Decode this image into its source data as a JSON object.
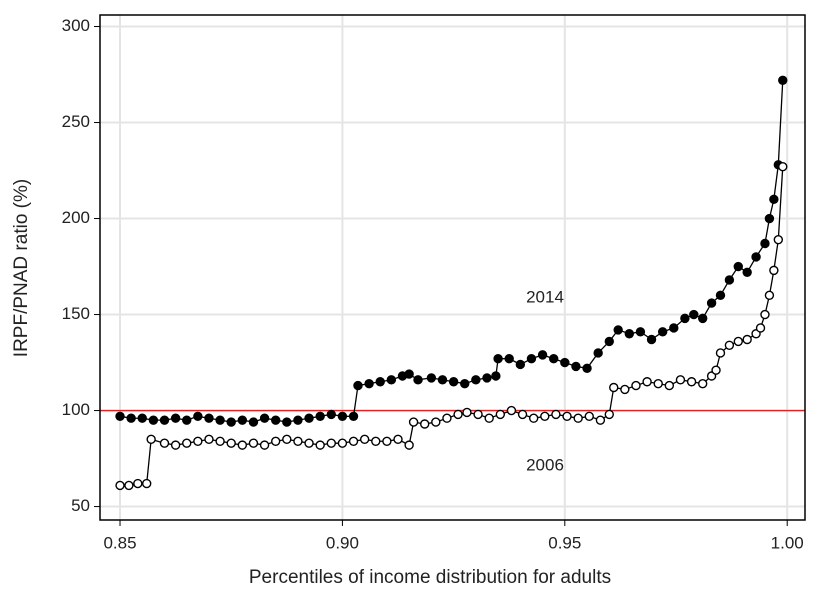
{
  "chart_data": {
    "type": "line",
    "xlabel": "Percentiles of income distribution for adults",
    "ylabel": "IRPF/PNAD ratio (%)",
    "xlim": [
      0.8455,
      1.004
    ],
    "ylim": [
      43,
      306
    ],
    "xticks": [
      0.85,
      {
        "value": 0.9,
        "label": "0.90"
      },
      0.95,
      {
        "value": 1,
        "label": "1.00"
      }
    ],
    "yticks": [
      50,
      100,
      150,
      200,
      250,
      300
    ],
    "grid": true,
    "hline": {
      "value": 100,
      "color": "#e02020"
    },
    "series": [
      {
        "name": "2014",
        "color": "#000000",
        "filled": true,
        "x": [
          0.85,
          0.8525,
          0.855,
          0.8575,
          0.86,
          0.8625,
          0.865,
          0.8675,
          0.87,
          0.8725,
          0.875,
          0.8775,
          0.88,
          0.8825,
          0.885,
          0.8875,
          0.89,
          0.8925,
          0.895,
          0.8975,
          0.9,
          0.9025,
          0.9035,
          0.906,
          0.9085,
          0.911,
          0.9135,
          0.915,
          0.917,
          0.92,
          0.9225,
          0.925,
          0.9275,
          0.93,
          0.9325,
          0.9345,
          0.935,
          0.9375,
          0.94,
          0.9425,
          0.945,
          0.9475,
          0.95,
          0.9525,
          0.955,
          0.9575,
          0.96,
          0.962,
          0.9645,
          0.967,
          0.9695,
          0.972,
          0.9745,
          0.977,
          0.979,
          0.981,
          0.983,
          0.985,
          0.987,
          0.989,
          0.991,
          0.993,
          0.995,
          0.996,
          0.997,
          0.998,
          0.999
        ],
        "values": [
          97,
          96,
          96,
          95,
          95,
          96,
          95,
          97,
          96,
          95,
          94,
          95,
          94,
          96,
          95,
          94,
          95,
          96,
          97,
          98,
          97,
          97,
          113,
          114,
          115,
          116,
          118,
          119,
          116,
          117,
          116,
          115,
          114,
          116,
          117,
          118,
          127,
          127,
          124,
          127,
          129,
          127,
          125,
          123,
          122,
          130,
          136,
          142,
          140,
          141,
          137,
          141,
          143,
          148,
          150,
          148,
          156,
          160,
          168,
          175,
          172,
          180,
          187,
          200,
          210,
          228,
          272
        ]
      },
      {
        "name": "2006",
        "color": "#000000",
        "filled": false,
        "x": [
          0.85,
          0.852,
          0.854,
          0.856,
          0.857,
          0.86,
          0.8625,
          0.865,
          0.8675,
          0.87,
          0.8725,
          0.875,
          0.8775,
          0.88,
          0.8825,
          0.885,
          0.8875,
          0.89,
          0.8925,
          0.895,
          0.8975,
          0.9,
          0.9025,
          0.905,
          0.9075,
          0.91,
          0.9125,
          0.915,
          0.916,
          0.9185,
          0.921,
          0.9235,
          0.926,
          0.928,
          0.9305,
          0.933,
          0.9355,
          0.938,
          0.9405,
          0.943,
          0.9455,
          0.948,
          0.9505,
          0.953,
          0.9555,
          0.958,
          0.96,
          0.961,
          0.9635,
          0.966,
          0.9685,
          0.971,
          0.9735,
          0.976,
          0.9785,
          0.981,
          0.983,
          0.984,
          0.985,
          0.987,
          0.989,
          0.991,
          0.993,
          0.994,
          0.995,
          0.996,
          0.997,
          0.998,
          0.999
        ],
        "values": [
          61,
          61,
          62,
          62,
          85,
          83,
          82,
          83,
          84,
          85,
          84,
          83,
          82,
          83,
          82,
          84,
          85,
          84,
          83,
          82,
          83,
          83,
          84,
          85,
          84,
          84,
          85,
          82,
          94,
          93,
          94,
          96,
          98,
          99,
          98,
          96,
          98,
          100,
          98,
          96,
          97,
          98,
          97,
          96,
          97,
          95,
          98,
          112,
          111,
          113,
          115,
          114,
          113,
          116,
          115,
          114,
          118,
          121,
          130,
          134,
          136,
          137,
          140,
          143,
          150,
          160,
          173,
          189,
          227
        ]
      }
    ]
  }
}
